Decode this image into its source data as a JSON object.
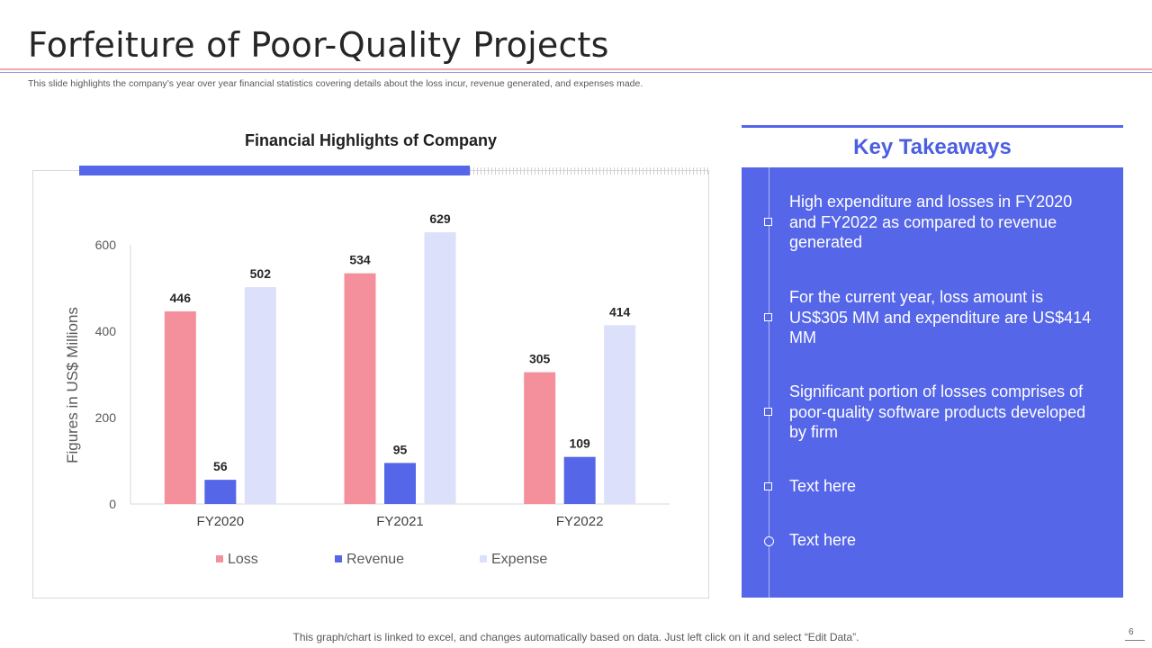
{
  "slide": {
    "title": "Forfeiture of Poor-Quality Projects",
    "subtitle": "This slide highlights the company’s year over year financial statistics covering details about the loss incur, revenue generated, and expenses made.",
    "footer_note": "This graph/chart is linked to excel, and changes automatically based on data. Just left click on it and select “Edit Data”.",
    "page_number": "6"
  },
  "chart_header": {
    "progress_fraction": 0.62
  },
  "chart_data": {
    "type": "bar",
    "title": "Financial Highlights of Company",
    "categories": [
      "FY2020",
      "FY2021",
      "FY2022"
    ],
    "series": [
      {
        "name": "Loss",
        "values": [
          446,
          534,
          305
        ],
        "color": "#f4909c"
      },
      {
        "name": "Revenue",
        "values": [
          56,
          95,
          109
        ],
        "color": "#5566e8"
      },
      {
        "name": "Expense",
        "values": [
          502,
          629,
          414
        ],
        "color": "#dde0fa"
      }
    ],
    "xlabel": "",
    "ylabel": "Figures in US$ Millions",
    "ylim": [
      0,
      600
    ],
    "yticks": [
      0,
      200,
      400,
      600
    ],
    "legend_position": "bottom",
    "grid": false
  },
  "takeaways": {
    "heading": "Key Takeaways",
    "items": [
      "High expenditure and losses in FY2020 and FY2022 as compared to revenue generated",
      "For the current year, loss amount is US$305 MM and expenditure are US$414 MM",
      "Significant portion of losses comprises of poor-quality software products developed by firm",
      "Text here",
      "Text here"
    ]
  },
  "colors": {
    "accent": "#5566e8",
    "loss": "#f4909c",
    "expense": "#dde0fa"
  }
}
